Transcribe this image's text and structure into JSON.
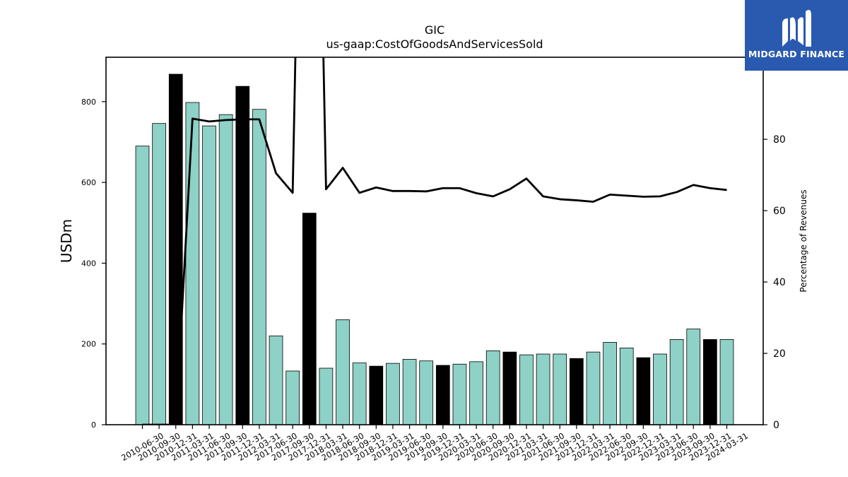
{
  "logo": {
    "text": "MIDGARD FINANCE",
    "icon": "midgard-logo-icon",
    "background": "#2a5ab0"
  },
  "chart_data": {
    "type": "bar",
    "title": "GIC",
    "subtitle": "us-gaap:CostOfGoodsAndServicesSold",
    "ylabel": "USDm",
    "y2label": "Percentage of Revenues",
    "ylim": [
      0,
      910
    ],
    "y2lim": [
      0,
      103
    ],
    "yticks": [
      0,
      200,
      400,
      600,
      800
    ],
    "y2ticks": [
      0,
      20,
      40,
      60,
      80
    ],
    "grid": false,
    "colors": {
      "quarter": "#8ed1c6",
      "annual": "#000000",
      "line": "#000000"
    },
    "categories": [
      "2010-06-30",
      "2010-09-30",
      "2010-12-31",
      "2011-03-31",
      "2011-06-30",
      "2011-09-30",
      "2011-12-31",
      "2012-03-31",
      "2017-06-30",
      "2017-09-30",
      "2017-12-31",
      "2018-03-31",
      "2018-06-30",
      "2018-09-30",
      "2018-12-31",
      "2019-03-31",
      "2019-06-30",
      "2019-09-30",
      "2019-12-31",
      "2020-03-31",
      "2020-06-30",
      "2020-09-30",
      "2020-12-31",
      "2021-03-31",
      "2021-06-30",
      "2021-09-30",
      "2021-12-31",
      "2022-03-31",
      "2022-06-30",
      "2022-09-30",
      "2022-12-31",
      "2023-03-31",
      "2023-06-30",
      "2023-09-30",
      "2023-12-31",
      "2024-03-31"
    ],
    "values": [
      690,
      746,
      868,
      798,
      740,
      768,
      838,
      781,
      220,
      133,
      524,
      140,
      260,
      153,
      145,
      152,
      162,
      158,
      147,
      150,
      156,
      183,
      180,
      173,
      175,
      175,
      164,
      180,
      204,
      190,
      166,
      175,
      211,
      237,
      211,
      211
    ],
    "annual": [
      false,
      false,
      true,
      false,
      false,
      false,
      true,
      false,
      false,
      false,
      true,
      false,
      false,
      false,
      true,
      false,
      false,
      false,
      true,
      false,
      false,
      false,
      true,
      false,
      false,
      false,
      true,
      false,
      false,
      false,
      true,
      false,
      false,
      false,
      true,
      false
    ],
    "series": [
      {
        "values": [
          0,
          0,
          0,
          85.8,
          85.0,
          85.4,
          85.6,
          85.6,
          70.5,
          65.0,
          300,
          66.0,
          72.0,
          65.0,
          66.5,
          65.5,
          65.5,
          65.4,
          66.3,
          66.3,
          64.9,
          64.0,
          66.0,
          69.0,
          64.0,
          63.2,
          62.9,
          62.5,
          64.5,
          64.2,
          63.9,
          64.0,
          65.2,
          67.2,
          66.3,
          65.8
        ]
      }
    ]
  }
}
